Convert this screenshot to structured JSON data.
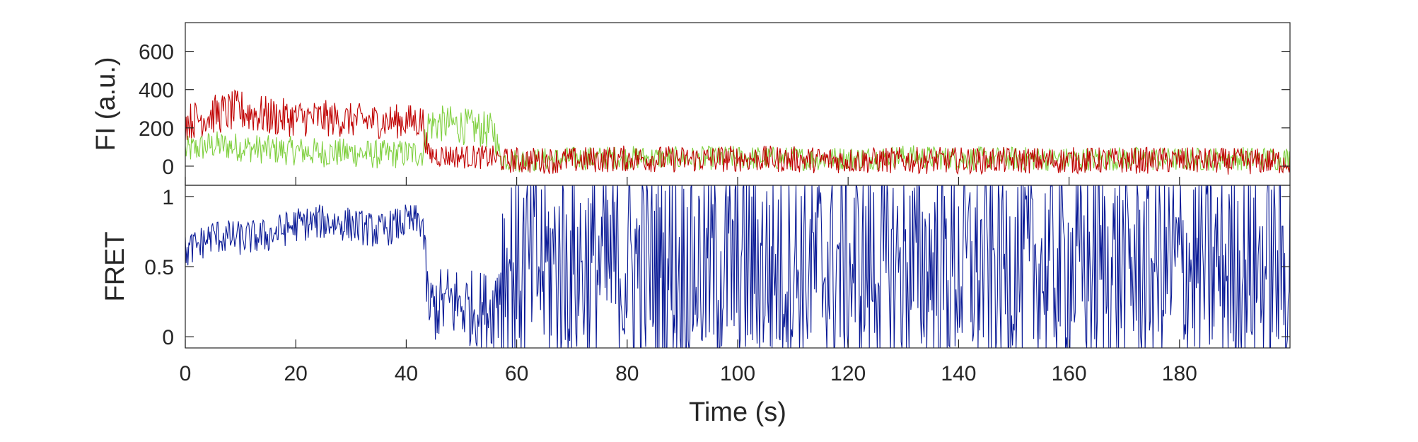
{
  "chart_data": [
    {
      "type": "line",
      "ylabel": "FI (a.u.)",
      "xlabel": "",
      "xlim": [
        0,
        200
      ],
      "ylim": [
        -100,
        750
      ],
      "yticks": [
        0,
        200,
        400,
        600
      ],
      "grid": false,
      "box": true,
      "series": [
        {
          "color": "#80d040",
          "x": [
            0,
            5,
            10,
            15,
            20,
            25,
            30,
            35,
            40,
            43,
            44,
            48,
            52,
            56,
            57,
            60,
            70,
            80,
            90,
            100,
            110,
            120,
            130,
            140,
            150,
            160,
            170,
            180,
            190,
            200
          ],
          "values": [
            80,
            110,
            100,
            85,
            80,
            70,
            70,
            60,
            65,
            70,
            220,
            220,
            200,
            180,
            40,
            30,
            40,
            45,
            40,
            45,
            40,
            40,
            50,
            40,
            40,
            35,
            40,
            35,
            40,
            40
          ],
          "noise": [
            55,
            55,
            55,
            55,
            55,
            55,
            55,
            55,
            55,
            55,
            70,
            70,
            70,
            70,
            45,
            45,
            45,
            45,
            45,
            45,
            45,
            45,
            45,
            45,
            45,
            45,
            45,
            45,
            45,
            45
          ]
        },
        {
          "color": "#c00000",
          "x": [
            0,
            5,
            10,
            15,
            20,
            25,
            30,
            35,
            40,
            43,
            44,
            50,
            56,
            57,
            60,
            70,
            80,
            90,
            100,
            110,
            120,
            130,
            140,
            150,
            160,
            170,
            180,
            190,
            200
          ],
          "values": [
            230,
            270,
            290,
            260,
            250,
            250,
            240,
            235,
            235,
            235,
            60,
            50,
            45,
            30,
            30,
            30,
            40,
            35,
            40,
            35,
            30,
            30,
            30,
            30,
            30,
            30,
            30,
            25,
            25
          ],
          "noise": [
            70,
            75,
            80,
            75,
            70,
            70,
            65,
            65,
            65,
            65,
            45,
            45,
            45,
            45,
            50,
            50,
            50,
            50,
            50,
            50,
            50,
            50,
            50,
            50,
            50,
            50,
            50,
            50,
            50
          ]
        }
      ]
    },
    {
      "type": "line",
      "ylabel": "FRET",
      "xlabel": "Time (s)",
      "xlim": [
        0,
        200
      ],
      "ylim": [
        -0.08,
        1.08
      ],
      "yticks": [
        0,
        0.5,
        1
      ],
      "xticks": [
        0,
        20,
        40,
        60,
        80,
        100,
        120,
        140,
        160,
        180
      ],
      "grid": false,
      "box": true,
      "series": [
        {
          "color": "#0a1a96",
          "x": [
            0,
            5,
            10,
            15,
            20,
            25,
            30,
            35,
            40,
            43,
            44,
            48,
            52,
            56,
            57,
            80,
            100,
            120,
            140,
            160,
            180,
            200
          ],
          "values": [
            0.6,
            0.72,
            0.7,
            0.72,
            0.8,
            0.82,
            0.8,
            0.75,
            0.82,
            0.82,
            0.2,
            0.25,
            0.2,
            0.2,
            0.5,
            0.5,
            0.5,
            0.5,
            0.5,
            0.5,
            0.5,
            0.5
          ],
          "noise": [
            0.09,
            0.09,
            0.09,
            0.09,
            0.09,
            0.09,
            0.09,
            0.09,
            0.09,
            0.09,
            0.18,
            0.2,
            0.2,
            0.2,
            0.55,
            0.55,
            0.55,
            0.55,
            0.55,
            0.55,
            0.55,
            0.55
          ]
        }
      ]
    }
  ]
}
